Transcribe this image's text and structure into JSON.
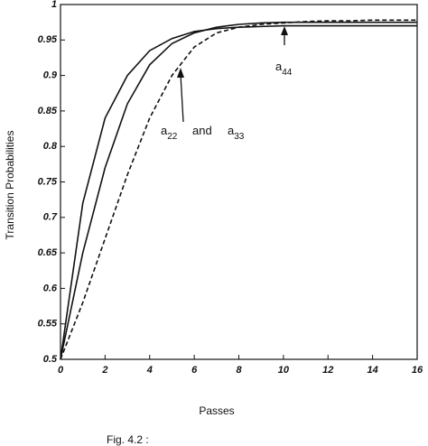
{
  "chart_data": {
    "type": "line",
    "x_label": "Passes",
    "y_label": "Transition    Probabilities",
    "caption": "Fig. 4.2 :",
    "x": [
      0,
      1,
      2,
      3,
      4,
      5,
      6,
      7,
      8,
      9,
      10,
      11,
      12,
      13,
      14,
      15,
      16
    ],
    "series": [
      {
        "color": "#111111",
        "dashed": false,
        "values": [
          0.5,
          0.72,
          0.84,
          0.9,
          0.935,
          0.952,
          0.962,
          0.966,
          0.968,
          0.969,
          0.97,
          0.97,
          0.97,
          0.97,
          0.97,
          0.97,
          0.97
        ]
      },
      {
        "color": "#111111",
        "dashed": false,
        "values": [
          0.5,
          0.65,
          0.77,
          0.86,
          0.915,
          0.945,
          0.96,
          0.968,
          0.972,
          0.974,
          0.975,
          0.975,
          0.975,
          0.975,
          0.975,
          0.975,
          0.975
        ]
      },
      {
        "color": "#111111",
        "dashed": true,
        "values": [
          0.5,
          0.58,
          0.67,
          0.76,
          0.84,
          0.9,
          0.94,
          0.96,
          0.968,
          0.972,
          0.974,
          0.976,
          0.977,
          0.977,
          0.978,
          0.978,
          0.978
        ]
      }
    ],
    "xlim": [
      0,
      16
    ],
    "xticks": [
      0,
      2,
      4,
      6,
      8,
      10,
      12,
      14,
      16
    ],
    "ylim": [
      0.5,
      1
    ],
    "yticks": [
      0.5,
      0.55,
      0.6,
      0.65,
      0.7,
      0.75,
      0.8,
      0.85,
      0.9,
      0.95,
      1
    ],
    "annotations": [
      {
        "text": "a",
        "sub": "22"
      },
      {
        "text": "and"
      },
      {
        "text": "a",
        "sub": "33"
      },
      {
        "text": "a",
        "sub": "44"
      }
    ]
  }
}
